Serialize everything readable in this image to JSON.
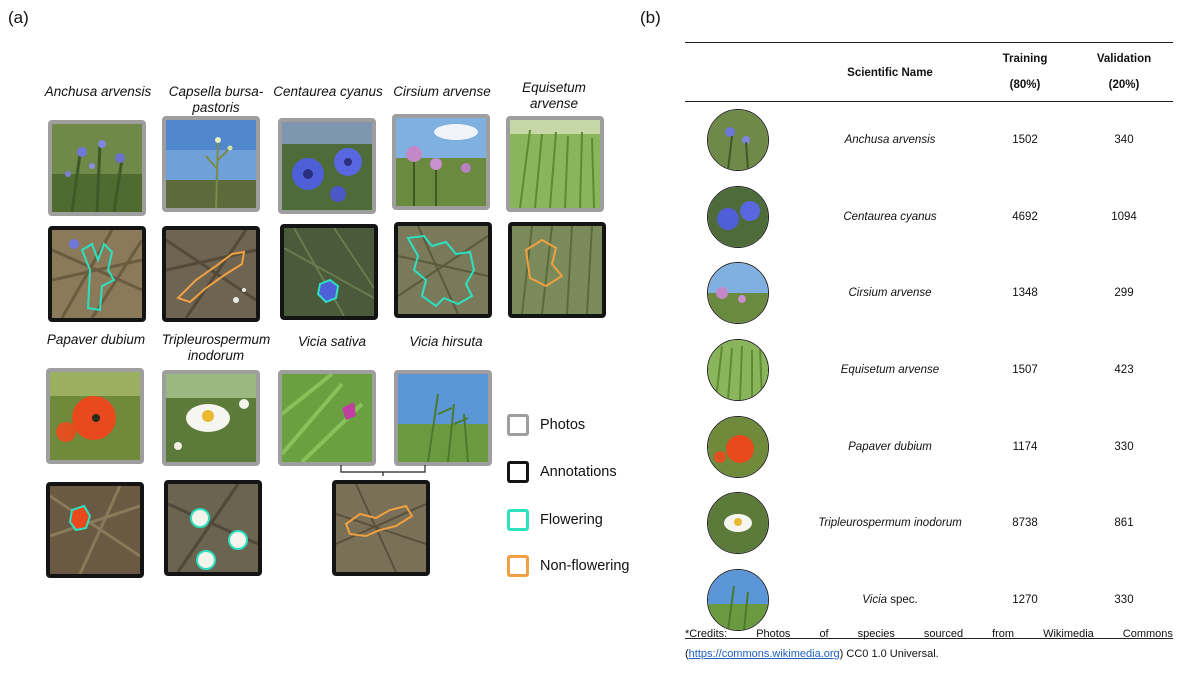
{
  "panel_a": {
    "label": "(a)",
    "species_top": [
      "Anchusa arvensis",
      "Capsella bursa-pastoris",
      "Centaurea cyanus",
      "Cirsium arvense",
      "Equisetum arvense"
    ],
    "species_bottom": [
      "Papaver dubium",
      "Tripleurospermum inodorum",
      "Vicia sativa",
      "Vicia hirsuta"
    ],
    "legend": {
      "photos": "Photos",
      "annotations": "Annotations",
      "flowering": "Flowering",
      "non_flowering": "Non-flowering"
    },
    "colors": {
      "photo_frame": "#9e9e9e",
      "annotation_frame": "#141414",
      "flowering": "#2de0c0",
      "non_flowering": "#f0a040"
    }
  },
  "panel_b": {
    "label": "(b)",
    "headers": {
      "name": "Scientific Name",
      "training_1": "Training",
      "training_2": "(80%)",
      "validation_1": "Validation",
      "validation_2": "(20%)"
    },
    "rows": [
      {
        "name": "Anchusa arvensis",
        "suffix": "",
        "training": "1502",
        "validation": "340"
      },
      {
        "name": "Centaurea cyanus",
        "suffix": "",
        "training": "4692",
        "validation": "1094"
      },
      {
        "name": "Cirsium arvense",
        "suffix": "",
        "training": "1348",
        "validation": "299"
      },
      {
        "name": "Equisetum arvense",
        "suffix": "",
        "training": "1507",
        "validation": "423"
      },
      {
        "name": "Papaver dubium",
        "suffix": "",
        "training": "1174",
        "validation": "330"
      },
      {
        "name": "Tripleurospermum inodorum",
        "suffix": "",
        "training": "8738",
        "validation": "861"
      },
      {
        "name": "Vicia",
        "suffix": " spec.",
        "training": "1270",
        "validation": "330"
      }
    ],
    "credits": {
      "words": [
        "*Credits:",
        "Photos",
        "of",
        "species",
        "sourced",
        "from",
        "Wikimedia",
        "Commons"
      ],
      "paren_open": "(",
      "link": "https://commons.wikimedia.org",
      "tail": ") CC0 1.0 Universal."
    }
  }
}
